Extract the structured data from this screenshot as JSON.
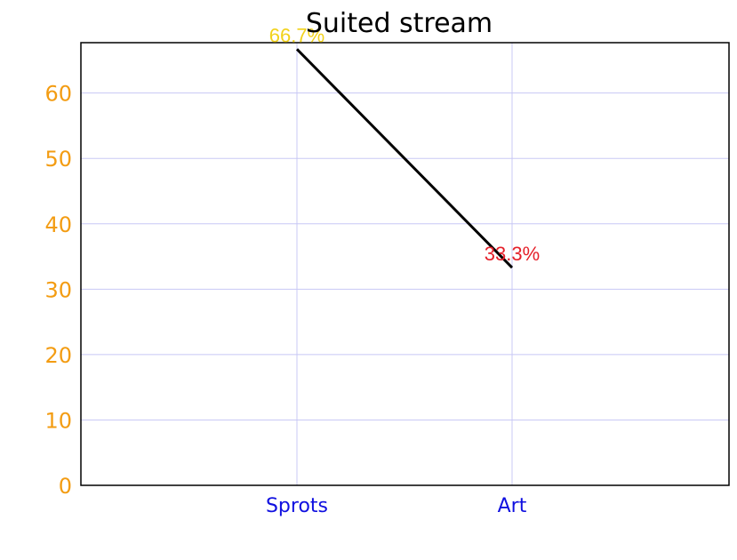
{
  "chart_data": {
    "type": "line",
    "title": "Suited stream",
    "xlabel": "",
    "ylabel": "",
    "categories": [
      "Sprots",
      "Art"
    ],
    "series": [
      {
        "values": [
          66.7,
          33.3
        ],
        "data_labels": [
          "66.7%",
          "33.3%"
        ],
        "label_colors": [
          "#f2d21b",
          "#e5202a"
        ],
        "color": "#000000"
      }
    ],
    "ylim": [
      0,
      67.7
    ],
    "y_ticks": [
      "0",
      "10",
      "20",
      "30",
      "40",
      "50",
      "60"
    ],
    "y_tick_values": [
      0,
      10,
      20,
      30,
      40,
      50,
      60
    ],
    "grid": true,
    "legend": "none",
    "colors": {
      "axis": "#000000",
      "grid": "#c8c8f5",
      "y_tick_labels": "#f39c12",
      "x_tick_labels": "#1010e0",
      "line": "#000000"
    }
  }
}
